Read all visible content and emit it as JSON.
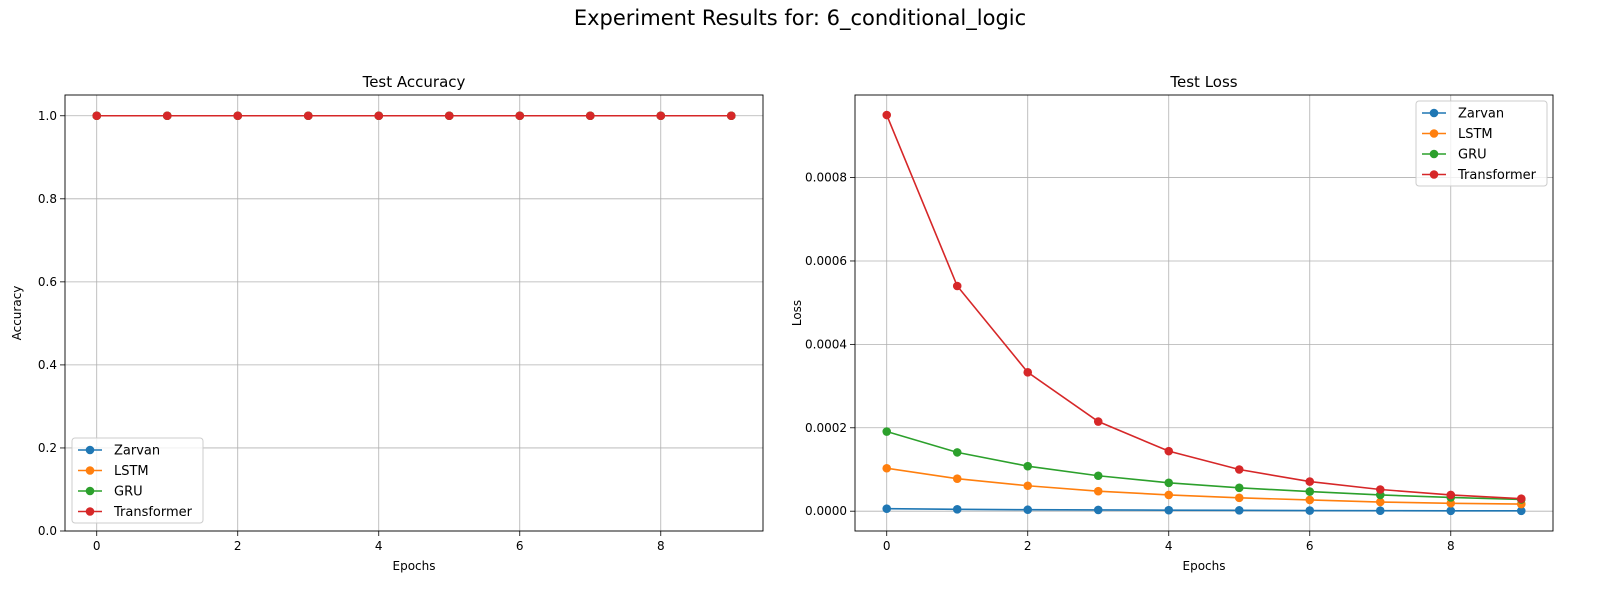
{
  "figure": {
    "suptitle": "Experiment Results for: 6_conditional_logic"
  },
  "colors": {
    "Zarvan": "#1f77b4",
    "LSTM": "#ff7f0e",
    "GRU": "#2ca02c",
    "Transformer": "#d62728"
  },
  "chart_data": [
    {
      "type": "line",
      "title": "Test Accuracy",
      "xlabel": "Epochs",
      "ylabel": "Accuracy",
      "x": [
        0,
        1,
        2,
        3,
        4,
        5,
        6,
        7,
        8,
        9
      ],
      "xlim": [
        -0.45,
        9.45
      ],
      "ylim": [
        0,
        1.05
      ],
      "xticks": [
        0,
        2,
        4,
        6,
        8
      ],
      "yticks": [
        0.0,
        0.2,
        0.4,
        0.6,
        0.8,
        1.0
      ],
      "ytick_labels": [
        "0.0",
        "0.2",
        "0.4",
        "0.6",
        "0.8",
        "1.0"
      ],
      "grid": true,
      "legend": "lower-left",
      "series": [
        {
          "name": "Zarvan",
          "values": [
            1.0,
            1.0,
            1.0,
            1.0,
            1.0,
            1.0,
            1.0,
            1.0,
            1.0,
            1.0
          ]
        },
        {
          "name": "LSTM",
          "values": [
            1.0,
            1.0,
            1.0,
            1.0,
            1.0,
            1.0,
            1.0,
            1.0,
            1.0,
            1.0
          ]
        },
        {
          "name": "GRU",
          "values": [
            1.0,
            1.0,
            1.0,
            1.0,
            1.0,
            1.0,
            1.0,
            1.0,
            1.0,
            1.0
          ]
        },
        {
          "name": "Transformer",
          "values": [
            1.0,
            1.0,
            1.0,
            1.0,
            1.0,
            1.0,
            1.0,
            1.0,
            1.0,
            1.0
          ]
        }
      ]
    },
    {
      "type": "line",
      "title": "Test Loss",
      "xlabel": "Epochs",
      "ylabel": "Loss",
      "x": [
        0,
        1,
        2,
        3,
        4,
        5,
        6,
        7,
        8,
        9
      ],
      "xlim": [
        -0.45,
        9.45
      ],
      "ylim": [
        -4.75e-05,
        0.000998
      ],
      "xticks": [
        0,
        2,
        4,
        6,
        8
      ],
      "yticks": [
        0.0,
        0.0002,
        0.0004,
        0.0006,
        0.0008
      ],
      "ytick_labels": [
        "0.0000",
        "0.0002",
        "0.0004",
        "0.0006",
        "0.0008"
      ],
      "grid": true,
      "legend": "upper-right",
      "series": [
        {
          "name": "Zarvan",
          "values": [
            6e-06,
            4.5e-06,
            3.5e-06,
            3e-06,
            2.5e-06,
            2e-06,
            1.5e-06,
            1.2e-06,
            1e-06,
            8e-07
          ]
        },
        {
          "name": "LSTM",
          "values": [
            0.000103,
            7.8e-05,
            6.1e-05,
            4.8e-05,
            3.9e-05,
            3.2e-05,
            2.7e-05,
            2.2e-05,
            1.9e-05,
            1.7e-05
          ]
        },
        {
          "name": "GRU",
          "values": [
            0.000191,
            0.000141,
            0.000108,
            8.5e-05,
            6.8e-05,
            5.6e-05,
            4.7e-05,
            3.9e-05,
            3.3e-05,
            2.8e-05
          ]
        },
        {
          "name": "Transformer",
          "values": [
            0.00095,
            0.00054,
            0.000333,
            0.000215,
            0.000144,
            0.0001,
            7.1e-05,
            5.2e-05,
            3.9e-05,
            3e-05
          ]
        }
      ]
    }
  ]
}
